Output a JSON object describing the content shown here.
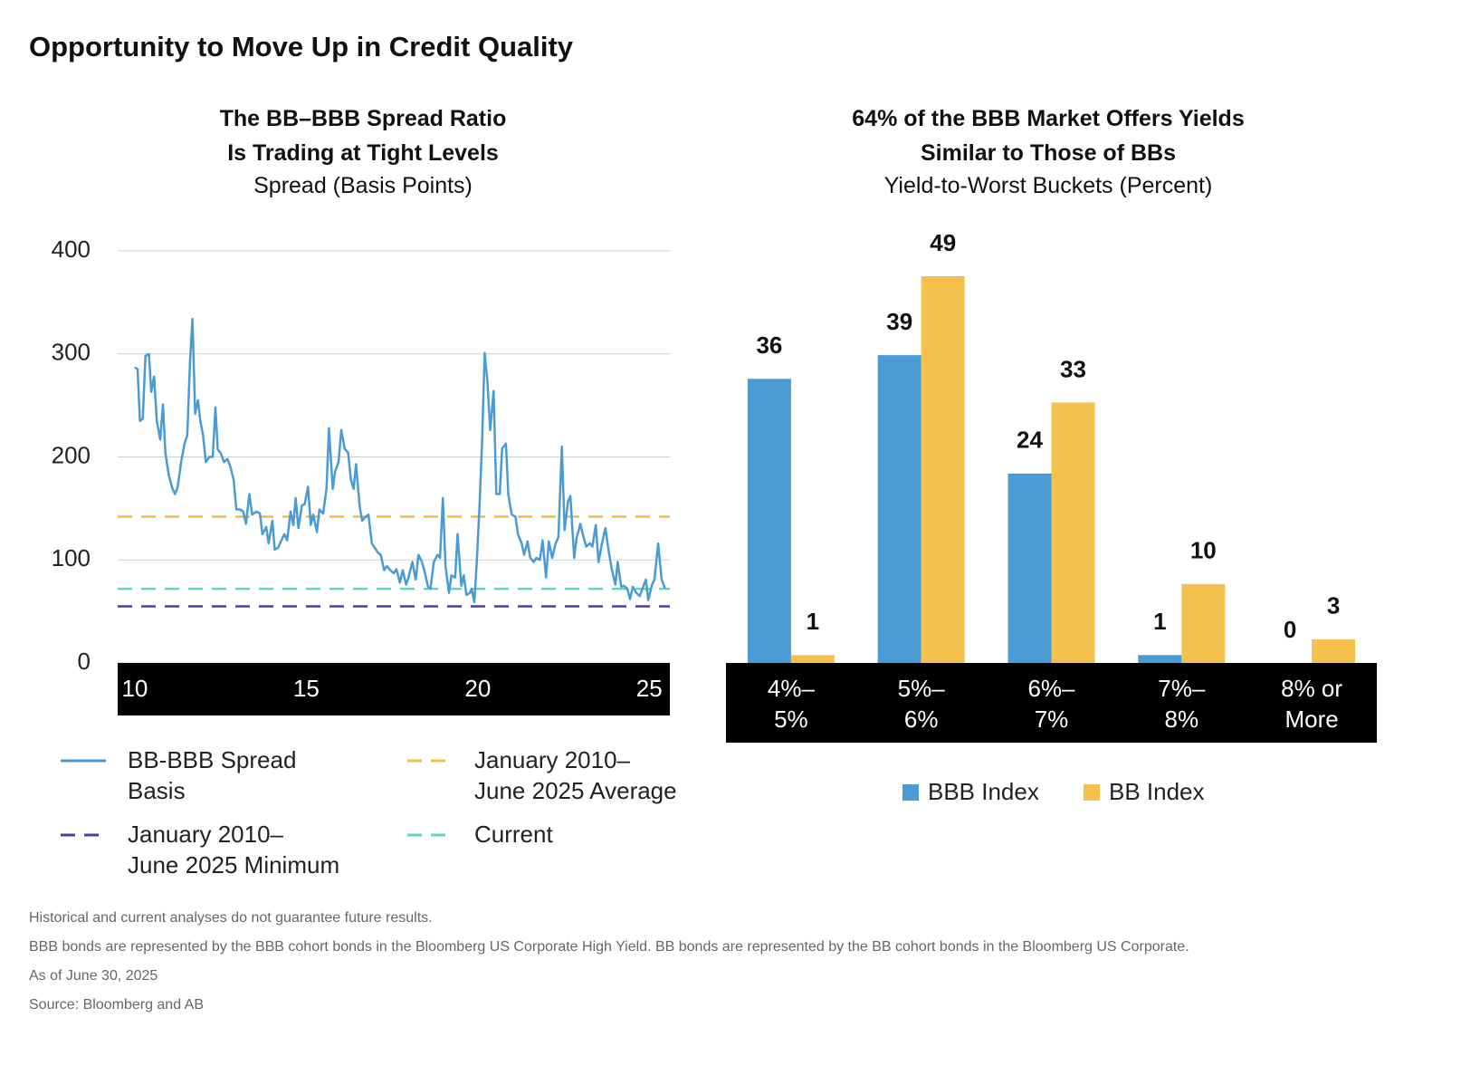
{
  "title": "Opportunity to Move Up in Credit Quality",
  "chart_data": [
    {
      "type": "line",
      "title": "The BB–BBB Spread Ratio\nIs Trading at Tight Levels",
      "subtitle": "Spread (Basis Points)",
      "x": [
        2010.0,
        2010.08,
        2010.15,
        2010.23,
        2010.31,
        2010.41,
        2010.48,
        2010.56,
        2010.64,
        2010.74,
        2010.82,
        2010.89,
        2010.99,
        2011.1,
        2011.17,
        2011.25,
        2011.35,
        2011.45,
        2011.53,
        2011.61,
        2011.68,
        2011.76,
        2011.84,
        2011.91,
        2011.99,
        2012.07,
        2012.17,
        2012.27,
        2012.35,
        2012.42,
        2012.5,
        2012.6,
        2012.7,
        2012.78,
        2012.88,
        2012.96,
        2013.06,
        2013.16,
        2013.24,
        2013.34,
        2013.42,
        2013.55,
        2013.65,
        2013.72,
        2013.83,
        2013.9,
        2014.01,
        2014.08,
        2014.18,
        2014.26,
        2014.36,
        2014.44,
        2014.54,
        2014.62,
        2014.69,
        2014.77,
        2014.87,
        2014.95,
        2015.05,
        2015.13,
        2015.2,
        2015.31,
        2015.38,
        2015.49,
        2015.59,
        2015.66,
        2015.77,
        2015.84,
        2015.94,
        2016.02,
        2016.12,
        2016.22,
        2016.3,
        2016.38,
        2016.45,
        2016.56,
        2016.63,
        2016.73,
        2016.81,
        2016.91,
        2016.99,
        2017.09,
        2017.17,
        2017.27,
        2017.35,
        2017.45,
        2017.55,
        2017.63,
        2017.73,
        2017.81,
        2017.91,
        2017.98,
        2018.09,
        2018.19,
        2018.27,
        2018.37,
        2018.44,
        2018.55,
        2018.62,
        2018.72,
        2018.83,
        2018.9,
        2018.98,
        2019.06,
        2019.16,
        2019.23,
        2019.34,
        2019.41,
        2019.52,
        2019.59,
        2019.67,
        2019.77,
        2019.82,
        2019.9,
        2019.97,
        2020.05,
        2020.13,
        2020.2,
        2020.28,
        2020.36,
        2020.46,
        2020.54,
        2020.64,
        2020.71,
        2020.82,
        2020.89,
        2020.99,
        2021.1,
        2021.17,
        2021.28,
        2021.35,
        2021.45,
        2021.53,
        2021.63,
        2021.71,
        2021.81,
        2021.89,
        2021.99,
        2022.07,
        2022.17,
        2022.27,
        2022.35,
        2022.45,
        2022.53,
        2022.63,
        2022.7,
        2022.81,
        2022.88,
        2022.99,
        2023.06,
        2023.16,
        2023.27,
        2023.34,
        2023.44,
        2023.52,
        2023.62,
        2023.72,
        2023.8,
        2023.9,
        2024.01,
        2024.08,
        2024.18,
        2024.26,
        2024.36,
        2024.44,
        2024.52,
        2024.62,
        2024.72,
        2024.8,
        2024.9,
        2024.97,
        2025.08,
        2025.15,
        2025.26,
        2025.36,
        2025.46
      ],
      "series": [
        {
          "name": "BB-BBB Spread\nBasis",
          "color": "#4a9bd4",
          "values": [
            287,
            285,
            235,
            237,
            298,
            300,
            263,
            278,
            235,
            217,
            251,
            204,
            182,
            169,
            164,
            171,
            195,
            213,
            221,
            292,
            334,
            242,
            255,
            235,
            221,
            195,
            200,
            200,
            248,
            207,
            204,
            195,
            198,
            191,
            178,
            149,
            149,
            147,
            135,
            164,
            144,
            147,
            145,
            125,
            132,
            116,
            138,
            110,
            112,
            118,
            125,
            119,
            147,
            134,
            160,
            131,
            153,
            154,
            171,
            134,
            144,
            127,
            149,
            145,
            169,
            228,
            169,
            186,
            195,
            226,
            208,
            204,
            178,
            169,
            193,
            151,
            138,
            142,
            144,
            116,
            112,
            107,
            105,
            90,
            94,
            90,
            87,
            91,
            78,
            90,
            76,
            83,
            98,
            81,
            105,
            98,
            90,
            74,
            72,
            98,
            105,
            102,
            160,
            94,
            68,
            85,
            83,
            125,
            75,
            85,
            66,
            68,
            72,
            59,
            98,
            151,
            221,
            301,
            274,
            226,
            264,
            164,
            164,
            208,
            213,
            164,
            144,
            142,
            125,
            116,
            105,
            118,
            102,
            98,
            102,
            100,
            119,
            83,
            118,
            102,
            116,
            122,
            210,
            129,
            157,
            162,
            102,
            121,
            135,
            125,
            113,
            116,
            113,
            134,
            98,
            116,
            131,
            112,
            92,
            76,
            98,
            74,
            75,
            72,
            62,
            74,
            68,
            65,
            72,
            81,
            61,
            76,
            81,
            116,
            81,
            72
          ]
        }
      ],
      "hlines": [
        {
          "name": "January 2010–\nJune 2025 Average",
          "color": "#f2bd45",
          "value": 142
        },
        {
          "name": "January 2010–\nJune 2025 Minimum",
          "color": "#4b3f9a",
          "value": 55
        },
        {
          "name": "Current",
          "color": "#5fd6c2",
          "value": 72
        }
      ],
      "xlim": [
        2009.5,
        2025.6
      ],
      "xticks": [
        {
          "value": 2010,
          "label": "10"
        },
        {
          "value": 2015,
          "label": "15"
        },
        {
          "value": 2020,
          "label": "20"
        },
        {
          "value": 2025,
          "label": "25"
        }
      ],
      "ylim": [
        0,
        400
      ],
      "yticks": [
        0,
        100,
        200,
        300,
        400
      ],
      "grid": true
    },
    {
      "type": "bar",
      "title": "64% of the BBB Market Offers Yields\nSimilar to Those of BBs",
      "subtitle": "Yield-to-Worst Buckets (Percent)",
      "categories": [
        "4%–\n5%",
        "5%–\n6%",
        "6%–\n7%",
        "7%–\n8%",
        "8% or\nMore"
      ],
      "series": [
        {
          "name": "BBB Index",
          "color": "#4a9bd4",
          "values": [
            36,
            39,
            24,
            1,
            0
          ]
        },
        {
          "name": "BB Index",
          "color": "#f4c04e",
          "values": [
            1,
            49,
            33,
            10,
            3
          ]
        }
      ]
    }
  ],
  "notes": [
    "Historical and current analyses do not guarantee future results.",
    "BBB bonds are represented by the BBB cohort bonds in the Bloomberg US Corporate High Yield. BB bonds are represented by the BB cohort bonds in the Bloomberg US Corporate.",
    "As of June 30, 2025",
    "Source: Bloomberg and AB"
  ]
}
